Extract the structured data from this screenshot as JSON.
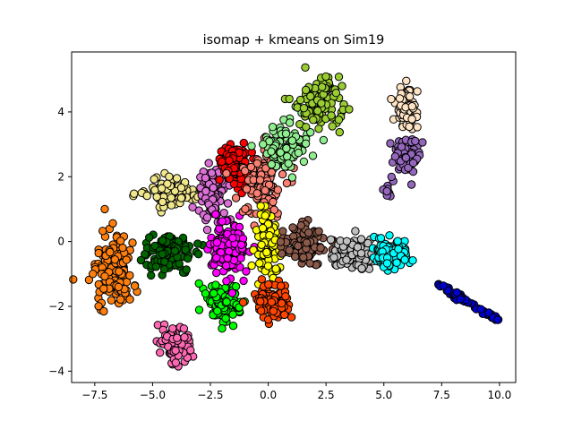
{
  "chart_data": {
    "type": "scatter",
    "title": "isomap + kmeans on Sim19",
    "xlabel": "",
    "ylabel": "",
    "xlim": [
      -8.5,
      10.7
    ],
    "ylim": [
      -4.35,
      5.85
    ],
    "xticks": [
      -7.5,
      -5.0,
      -2.5,
      0.0,
      2.5,
      5.0,
      7.5,
      10.0
    ],
    "xtick_labels": [
      "−7.5",
      "−5.0",
      "−2.5",
      "0.0",
      "2.5",
      "5.0",
      "7.5",
      "10.0"
    ],
    "yticks": [
      -4,
      -2,
      0,
      2,
      4
    ],
    "ytick_labels": [
      "−4",
      "−2",
      "0",
      "2",
      "4"
    ],
    "grid": false,
    "legend": "none",
    "clusters": [
      {
        "color": "#ff7f0e",
        "center": [
          -6.7,
          -1.0
        ],
        "spread": [
          0.55,
          0.7
        ],
        "n": 140
      },
      {
        "color": "#006400",
        "center": [
          -4.2,
          -0.4
        ],
        "spread": [
          0.7,
          0.4
        ],
        "n": 110
      },
      {
        "color": "#f0e68c",
        "center": [
          -4.2,
          1.5
        ],
        "spread": [
          0.7,
          0.3
        ],
        "n": 100
      },
      {
        "color": "#ff69b4",
        "center": [
          -4.0,
          -3.1
        ],
        "spread": [
          0.45,
          0.4
        ],
        "n": 90
      },
      {
        "color": "#da70d6",
        "center": [
          -2.4,
          1.4
        ],
        "spread": [
          0.4,
          0.6
        ],
        "n": 90
      },
      {
        "color": "#00ff00",
        "center": [
          -1.9,
          -1.9
        ],
        "spread": [
          0.5,
          0.4
        ],
        "n": 120
      },
      {
        "color": "#ff00ff",
        "center": [
          -1.7,
          -0.2
        ],
        "spread": [
          0.5,
          0.5
        ],
        "n": 160
      },
      {
        "color": "#ff0000",
        "center": [
          -1.5,
          2.4
        ],
        "spread": [
          0.4,
          0.4
        ],
        "n": 110
      },
      {
        "color": "#fa8072",
        "center": [
          -0.3,
          1.8
        ],
        "spread": [
          0.6,
          0.7
        ],
        "n": 130
      },
      {
        "color": "#ffff00",
        "center": [
          0.0,
          -0.1
        ],
        "spread": [
          0.35,
          0.6
        ],
        "n": 130
      },
      {
        "color": "#ff4500",
        "center": [
          0.2,
          -1.9
        ],
        "spread": [
          0.55,
          0.35
        ],
        "n": 110
      },
      {
        "color": "#90ee90",
        "center": [
          0.8,
          3.0
        ],
        "spread": [
          0.65,
          0.5
        ],
        "n": 110
      },
      {
        "color": "#9acd32",
        "center": [
          2.2,
          4.3
        ],
        "spread": [
          0.6,
          0.55
        ],
        "n": 120
      },
      {
        "color": "#8b5a4a",
        "center": [
          1.6,
          -0.1
        ],
        "spread": [
          0.6,
          0.4
        ],
        "n": 110
      },
      {
        "color": "#c0c0c0",
        "center": [
          3.8,
          -0.4
        ],
        "spread": [
          0.6,
          0.3
        ],
        "n": 120
      },
      {
        "color": "#00ffff",
        "center": [
          5.3,
          -0.4
        ],
        "spread": [
          0.55,
          0.3
        ],
        "n": 120
      },
      {
        "color": "#ffe4c4",
        "center": [
          6.0,
          4.2
        ],
        "spread": [
          0.35,
          0.45
        ],
        "n": 80
      },
      {
        "color": "#9467bd",
        "center": [
          6.0,
          2.7
        ],
        "spread": [
          0.35,
          0.4
        ],
        "n": 70
      }
    ],
    "extra_groups": [
      {
        "color": "#9467bd",
        "center": [
          5.2,
          1.7
        ],
        "spread": [
          0.15,
          0.15
        ],
        "n": 10
      },
      {
        "color": "#0000cd",
        "line_from": [
          7.3,
          -1.3
        ],
        "line_to": [
          9.9,
          -2.4
        ],
        "n": 60
      }
    ]
  }
}
